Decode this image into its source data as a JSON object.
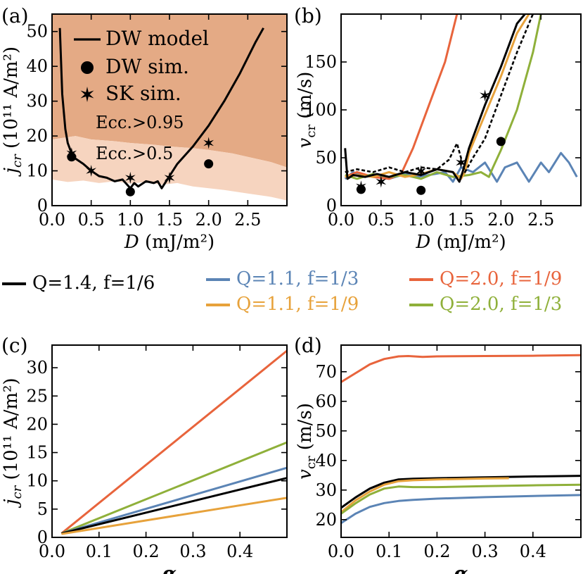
{
  "colors": {
    "black": "#000000",
    "blue": "#5b84b5",
    "orange": "#e7a23b",
    "red": "#e8643c",
    "green": "#8fb03a",
    "region_dark": "#e4aa85",
    "region_light": "#f6d4bf"
  },
  "legend_shared": [
    {
      "label": "Q=1.4, f=1/6",
      "color": "#000000"
    },
    {
      "label": "Q=1.1, f=1/3",
      "color": "#5b84b5"
    },
    {
      "label": "Q=2.0, f=1/9",
      "color": "#e8643c"
    },
    {
      "label": "Q=1.1, f=1/9",
      "color": "#e7a23b"
    },
    {
      "label": "Q=2.0, f=1/3",
      "color": "#8fb03a"
    }
  ],
  "chart_data": [
    {
      "panel": "(a)",
      "type": "line",
      "xlabel": "D (mJ/m²)",
      "ylabel_main": "j",
      "ylabel_sub": "cr",
      "ylabel_rest": " (10¹¹ A/m²)",
      "xlim": [
        0.0,
        3.0
      ],
      "ylim": [
        0,
        55
      ],
      "xticks": [
        0.0,
        0.5,
        1.0,
        1.5,
        2.0,
        2.5
      ],
      "xtick_labels": [
        "0.0",
        "0.5",
        "1.0",
        "1.5",
        "2.0",
        "2.5"
      ],
      "yticks": [
        0,
        10,
        20,
        30,
        40,
        50
      ],
      "ytick_labels": [
        "0",
        "10",
        "20",
        "30",
        "40",
        "50"
      ],
      "legend": [
        {
          "label": "DW model",
          "marker": "line"
        },
        {
          "label": "DW sim.",
          "marker": "circle"
        },
        {
          "label": "SK sim.",
          "marker": "star"
        }
      ],
      "region_labels": [
        "Ecc.>0.95",
        "Ecc.>0.5"
      ],
      "regions": {
        "ecc_095_lower": {
          "x": [
            0.0,
            0.3,
            0.5,
            0.8,
            1.0,
            1.3,
            1.5,
            1.8,
            2.0,
            2.3,
            2.5,
            2.8,
            3.0
          ],
          "y": [
            19,
            20,
            19,
            18.5,
            18,
            17.5,
            17,
            16.5,
            16,
            15,
            14,
            12.5,
            11
          ]
        },
        "ecc_05_lower": {
          "x": [
            0.0,
            0.2,
            0.4,
            0.6,
            0.8,
            1.0,
            1.2,
            1.4,
            1.6,
            1.8,
            2.0,
            2.2,
            2.5,
            2.8,
            3.0
          ],
          "y": [
            7.5,
            6.8,
            7.2,
            6.5,
            7.0,
            6.3,
            6.8,
            6.0,
            6.5,
            5.5,
            5.0,
            4.5,
            3.5,
            2.5,
            1.5
          ]
        }
      },
      "series": [
        {
          "name": "DW model",
          "color": "#000000",
          "x": [
            0.1,
            0.13,
            0.17,
            0.2,
            0.25,
            0.3,
            0.4,
            0.5,
            0.6,
            0.7,
            0.8,
            0.9,
            1.0,
            1.05,
            1.1,
            1.2,
            1.3,
            1.35,
            1.4,
            1.5,
            1.6,
            1.8,
            2.0,
            2.2,
            2.4,
            2.6,
            2.7
          ],
          "y": [
            51,
            32,
            22,
            18,
            15,
            13.5,
            12,
            10,
            8.5,
            8,
            7,
            7.5,
            5,
            6.5,
            5.5,
            7,
            6.5,
            7,
            5,
            8.5,
            12,
            17,
            23,
            30,
            38,
            47,
            51
          ]
        }
      ],
      "dw_sim": {
        "x": [
          0.25,
          1.0,
          2.0
        ],
        "y": [
          14,
          4,
          12
        ]
      },
      "sk_sim": {
        "x": [
          0.25,
          0.5,
          1.0,
          1.5,
          2.0
        ],
        "y": [
          15,
          10,
          8,
          8,
          18
        ]
      }
    },
    {
      "panel": "(b)",
      "type": "line",
      "xlabel": "D (mJ/m²)",
      "ylabel_main": "v",
      "ylabel_sub": "cr",
      "ylabel_rest": " (m/s)",
      "xlim": [
        0.0,
        3.0
      ],
      "ylim": [
        0,
        200
      ],
      "xticks": [
        0.0,
        0.5,
        1.0,
        1.5,
        2.0,
        2.5
      ],
      "xtick_labels": [
        "0.0",
        "0.5",
        "1.0",
        "1.5",
        "2.0",
        "2.5"
      ],
      "yticks": [
        0,
        50,
        100,
        150
      ],
      "ytick_labels": [
        "0",
        "50",
        "100",
        "150"
      ],
      "series": [
        {
          "name": "Q=1.1, f=1/3",
          "color": "#5b84b5",
          "x": [
            0.05,
            0.15,
            0.3,
            0.45,
            0.6,
            0.8,
            0.95,
            1.1,
            1.3,
            1.4,
            1.5,
            1.65,
            1.8,
            1.95,
            2.05,
            2.2,
            2.35,
            2.5,
            2.6,
            2.75,
            2.85,
            2.95
          ],
          "y": [
            28,
            35,
            30,
            32,
            28,
            33,
            30,
            32,
            35,
            25,
            40,
            35,
            45,
            25,
            40,
            45,
            25,
            45,
            35,
            55,
            45,
            30
          ]
        },
        {
          "name": "Q=2.0, f=1/9",
          "color": "#e8643c",
          "x": [
            0.05,
            0.2,
            0.4,
            0.6,
            0.75,
            0.9,
            1.1,
            1.3,
            1.45
          ],
          "y": [
            30,
            35,
            30,
            28,
            33,
            60,
            105,
            150,
            200
          ]
        },
        {
          "name": "Q=2.0, f=1/3",
          "color": "#8fb03a",
          "x": [
            0.05,
            0.2,
            0.4,
            0.6,
            0.8,
            1.0,
            1.2,
            1.4,
            1.6,
            1.75,
            1.85,
            1.9,
            2.0,
            2.2,
            2.4,
            2.5
          ],
          "y": [
            32,
            28,
            33,
            30,
            32,
            28,
            35,
            30,
            32,
            35,
            30,
            40,
            58,
            100,
            160,
            200
          ]
        },
        {
          "name": "Q=1.1, f=1/9",
          "color": "#e7a23b",
          "x": [
            0.05,
            0.2,
            0.4,
            0.6,
            0.8,
            1.0,
            1.2,
            1.4,
            1.5,
            1.55,
            1.6,
            1.8,
            2.0,
            2.2,
            2.35
          ],
          "y": [
            30,
            32,
            30,
            35,
            30,
            33,
            38,
            35,
            28,
            35,
            55,
            95,
            135,
            180,
            200
          ]
        },
        {
          "name": "Q=1.4, f=1/6",
          "color": "#000000",
          "x": [
            0.05,
            0.08,
            0.15,
            0.3,
            0.45,
            0.6,
            0.8,
            1.0,
            1.2,
            1.4,
            1.48,
            1.52,
            1.6,
            1.8,
            2.0,
            2.2,
            2.3
          ],
          "y": [
            60,
            28,
            32,
            30,
            33,
            30,
            35,
            32,
            38,
            35,
            25,
            35,
            60,
            105,
            145,
            190,
            200
          ]
        },
        {
          "name": "SK",
          "color": "#000000",
          "dashed": true,
          "x": [
            0.05,
            0.2,
            0.4,
            0.6,
            0.8,
            1.0,
            1.2,
            1.35,
            1.45,
            1.55,
            1.65,
            1.8,
            2.0,
            2.2,
            2.4
          ],
          "y": [
            35,
            38,
            35,
            40,
            35,
            40,
            38,
            48,
            65,
            35,
            50,
            70,
            115,
            160,
            200
          ]
        }
      ],
      "dw_sim": {
        "x": [
          0.25,
          1.0,
          2.0
        ],
        "y": [
          17,
          16,
          67
        ]
      },
      "sk_sim": {
        "x": [
          0.25,
          0.5,
          1.0,
          1.5,
          1.8
        ],
        "y": [
          20,
          25,
          36,
          45,
          115
        ]
      }
    },
    {
      "panel": "(c)",
      "type": "line",
      "xlabel": "α",
      "ylabel_main": "j",
      "ylabel_sub": "cr",
      "ylabel_rest": " (10¹¹ A/m²)",
      "xlim": [
        0.0,
        0.5
      ],
      "ylim": [
        0,
        34
      ],
      "xticks": [
        0.0,
        0.1,
        0.2,
        0.3,
        0.4
      ],
      "xtick_labels": [
        "0.0",
        "0.1",
        "0.2",
        "0.3",
        "0.4"
      ],
      "yticks": [
        0,
        5,
        10,
        15,
        20,
        25,
        30
      ],
      "ytick_labels": [
        "0",
        "5",
        "10",
        "15",
        "20",
        "25",
        "30"
      ],
      "series": [
        {
          "name": "Q=2.0, f=1/9",
          "color": "#e8643c",
          "x": [
            0.02,
            0.5
          ],
          "y": [
            0.7,
            33.0
          ]
        },
        {
          "name": "Q=2.0, f=1/3",
          "color": "#8fb03a",
          "x": [
            0.02,
            0.5
          ],
          "y": [
            0.7,
            16.8
          ]
        },
        {
          "name": "Q=1.1, f=1/3",
          "color": "#5b84b5",
          "x": [
            0.02,
            0.5
          ],
          "y": [
            0.7,
            12.3
          ]
        },
        {
          "name": "Q=1.4, f=1/6",
          "color": "#000000",
          "x": [
            0.02,
            0.5
          ],
          "y": [
            0.7,
            10.5
          ]
        },
        {
          "name": "Q=1.1, f=1/9",
          "color": "#e7a23b",
          "x": [
            0.02,
            0.5
          ],
          "y": [
            0.6,
            7.0
          ]
        }
      ]
    },
    {
      "panel": "(d)",
      "type": "line",
      "xlabel": "α",
      "ylabel_main": "v",
      "ylabel_sub": "cr",
      "ylabel_rest": " (m/s)",
      "xlim": [
        0.0,
        0.5
      ],
      "ylim": [
        14,
        79
      ],
      "xticks": [
        0.0,
        0.1,
        0.2,
        0.3,
        0.4
      ],
      "xtick_labels": [
        "0.0",
        "0.1",
        "0.2",
        "0.3",
        "0.4"
      ],
      "yticks": [
        20,
        30,
        40,
        50,
        60,
        70
      ],
      "ytick_labels": [
        "20",
        "30",
        "40",
        "50",
        "60",
        "70"
      ],
      "series": [
        {
          "name": "Q=2.0, f=1/9",
          "color": "#e8643c",
          "x": [
            0.0,
            0.03,
            0.06,
            0.09,
            0.12,
            0.14,
            0.17,
            0.2,
            0.3,
            0.4,
            0.5
          ],
          "y": [
            66.5,
            69.5,
            72.5,
            74.3,
            75.2,
            75.3,
            75.0,
            75.2,
            75.3,
            75.4,
            75.6
          ]
        },
        {
          "name": "Q=1.4, f=1/6",
          "color": "#000000",
          "x": [
            0.0,
            0.03,
            0.06,
            0.09,
            0.12,
            0.15,
            0.2,
            0.3,
            0.4,
            0.5
          ],
          "y": [
            24,
            27.5,
            30.5,
            32.5,
            33.6,
            33.8,
            34.0,
            34.3,
            34.6,
            34.8
          ]
        },
        {
          "name": "Q=1.1, f=1/9",
          "color": "#e7a23b",
          "x": [
            0.0,
            0.03,
            0.06,
            0.09,
            0.12,
            0.15,
            0.2,
            0.3,
            0.35
          ],
          "y": [
            22.5,
            26.5,
            29.5,
            31.8,
            33.0,
            33.3,
            33.6,
            33.9,
            34.0
          ]
        },
        {
          "name": "Q=2.0, f=1/3",
          "color": "#8fb03a",
          "x": [
            0.0,
            0.03,
            0.06,
            0.09,
            0.12,
            0.15,
            0.2,
            0.3,
            0.4,
            0.5
          ],
          "y": [
            22.0,
            25.5,
            28.5,
            30.5,
            31.2,
            31.0,
            31.0,
            31.3,
            31.6,
            31.8
          ]
        },
        {
          "name": "Q=1.1, f=1/3",
          "color": "#5b84b5",
          "x": [
            0.0,
            0.03,
            0.06,
            0.09,
            0.12,
            0.15,
            0.2,
            0.3,
            0.4,
            0.5
          ],
          "y": [
            18.8,
            22.0,
            24.3,
            25.6,
            26.3,
            26.7,
            27.1,
            27.6,
            28.0,
            28.3
          ]
        }
      ]
    }
  ]
}
